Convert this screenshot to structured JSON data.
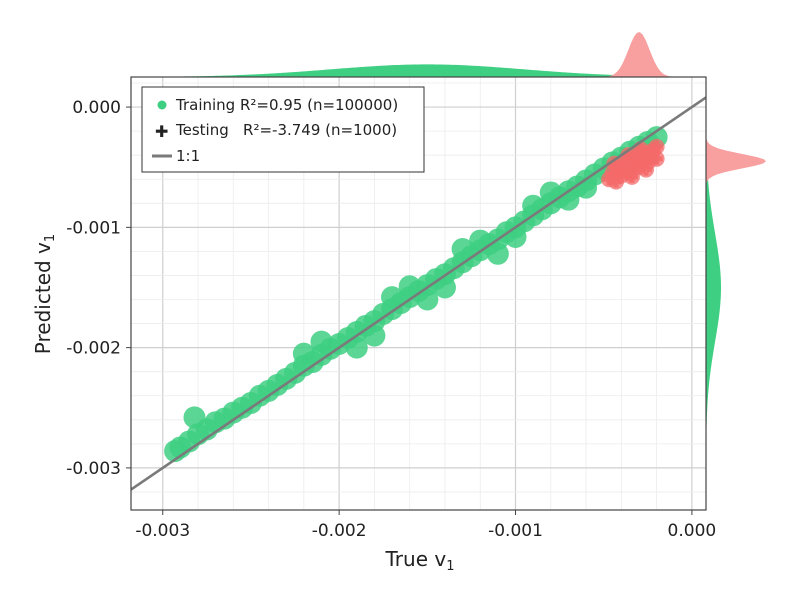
{
  "chart_data": {
    "type": "scatter",
    "title": "",
    "xlabel": "True v",
    "xlabel_sub": "1",
    "ylabel": "Predicted v",
    "ylabel_sub": "1",
    "xlim": [
      -0.00318,
      8e-05
    ],
    "ylim": [
      -0.00335,
      0.00025
    ],
    "x_ticks": [
      -0.003,
      -0.002,
      -0.001,
      0.0
    ],
    "x_tick_labels": [
      "-0.003",
      "-0.002",
      "-0.001",
      "0.000"
    ],
    "y_ticks": [
      0.0,
      -0.001,
      -0.002,
      -0.003
    ],
    "y_tick_labels": [
      "0.000",
      "-0.001",
      "-0.002",
      "-0.003"
    ],
    "grid": true,
    "legend_position": "top-left",
    "legend": [
      {
        "marker": "circle",
        "label": "Training R²=0.95 (n=100000)"
      },
      {
        "marker": "plus",
        "label": "Testing   R²=-3.749 (n=1000)"
      },
      {
        "marker": "line",
        "label": "1:1"
      }
    ],
    "series": [
      {
        "name": "Training R²=0.95 (n=100000)",
        "color": "#3ecf82",
        "marker": "circle",
        "points": [
          [
            -0.00293,
            -0.00286
          ],
          [
            -0.0029,
            -0.00283
          ],
          [
            -0.00285,
            -0.00278
          ],
          [
            -0.00282,
            -0.00258
          ],
          [
            -0.0028,
            -0.00272
          ],
          [
            -0.00275,
            -0.00268
          ],
          [
            -0.0027,
            -0.00262
          ],
          [
            -0.00265,
            -0.00259
          ],
          [
            -0.0026,
            -0.00254
          ],
          [
            -0.00255,
            -0.0025
          ],
          [
            -0.0025,
            -0.00246
          ],
          [
            -0.00245,
            -0.0024
          ],
          [
            -0.0024,
            -0.00236
          ],
          [
            -0.00235,
            -0.00231
          ],
          [
            -0.0023,
            -0.00226
          ],
          [
            -0.00225,
            -0.00221
          ],
          [
            -0.0022,
            -0.00215
          ],
          [
            -0.00215,
            -0.00212
          ],
          [
            -0.0021,
            -0.00206
          ],
          [
            -0.00205,
            -0.00201
          ],
          [
            -0.002,
            -0.00197
          ],
          [
            -0.00195,
            -0.00192
          ],
          [
            -0.0019,
            -0.00187
          ],
          [
            -0.00185,
            -0.00182
          ],
          [
            -0.0018,
            -0.00178
          ],
          [
            -0.00175,
            -0.00172
          ],
          [
            -0.0017,
            -0.00168
          ],
          [
            -0.00165,
            -0.00163
          ],
          [
            -0.0016,
            -0.00158
          ],
          [
            -0.00155,
            -0.00153
          ],
          [
            -0.0015,
            -0.00148
          ],
          [
            -0.00145,
            -0.00143
          ],
          [
            -0.0014,
            -0.00139
          ],
          [
            -0.00135,
            -0.00134
          ],
          [
            -0.0013,
            -0.00129
          ],
          [
            -0.00125,
            -0.00124
          ],
          [
            -0.0012,
            -0.00119
          ],
          [
            -0.00115,
            -0.00114
          ],
          [
            -0.0011,
            -0.0011
          ],
          [
            -0.00105,
            -0.00104
          ],
          [
            -0.001,
            -0.001
          ],
          [
            -0.00095,
            -0.00095
          ],
          [
            -0.0009,
            -0.0009
          ],
          [
            -0.00085,
            -0.00085
          ],
          [
            -0.0008,
            -0.0008
          ],
          [
            -0.00075,
            -0.00075
          ],
          [
            -0.0007,
            -0.0007
          ],
          [
            -0.00065,
            -0.00066
          ],
          [
            -0.0006,
            -0.00061
          ],
          [
            -0.00055,
            -0.00056
          ],
          [
            -0.0005,
            -0.00051
          ],
          [
            -0.00045,
            -0.00046
          ],
          [
            -0.0004,
            -0.00042
          ],
          [
            -0.00035,
            -0.00037
          ],
          [
            -0.0003,
            -0.00033
          ],
          [
            -0.00025,
            -0.00029
          ],
          [
            -0.0002,
            -0.00025
          ],
          [
            -0.0022,
            -0.00205
          ],
          [
            -0.0019,
            -0.002
          ],
          [
            -0.0017,
            -0.00158
          ],
          [
            -0.0015,
            -0.0016
          ],
          [
            -0.0013,
            -0.00118
          ],
          [
            -0.0011,
            -0.00122
          ],
          [
            -0.0009,
            -0.00082
          ],
          [
            -0.0007,
            -0.00077
          ],
          [
            -0.0021,
            -0.00195
          ],
          [
            -0.0018,
            -0.0019
          ],
          [
            -0.0016,
            -0.00149
          ],
          [
            -0.0014,
            -0.0015
          ],
          [
            -0.0012,
            -0.00111
          ],
          [
            -0.001,
            -0.00108
          ],
          [
            -0.0008,
            -0.00071
          ],
          [
            -0.0006,
            -0.00067
          ]
        ]
      },
      {
        "name": "Testing   R²=-3.749 (n=1000)",
        "color": "#f46a6a",
        "marker": "plus",
        "points": [
          [
            -0.00047,
            -0.0006
          ],
          [
            -0.00045,
            -0.00055
          ],
          [
            -0.00043,
            -0.00062
          ],
          [
            -0.00042,
            -0.0005
          ],
          [
            -0.0004,
            -0.00057
          ],
          [
            -0.00038,
            -0.00052
          ],
          [
            -0.00037,
            -0.00045
          ],
          [
            -0.00035,
            -0.00055
          ],
          [
            -0.00033,
            -0.00048
          ],
          [
            -0.00032,
            -0.00042
          ],
          [
            -0.0003,
            -0.0005
          ],
          [
            -0.00028,
            -0.00044
          ],
          [
            -0.00027,
            -0.00038
          ],
          [
            -0.00025,
            -0.00046
          ],
          [
            -0.00023,
            -0.00041
          ],
          [
            -0.00022,
            -0.00036
          ],
          [
            -0.0002,
            -0.00043
          ],
          [
            -0.0002,
            -0.00033
          ],
          [
            -0.00044,
            -0.00047
          ],
          [
            -0.00036,
            -0.0004
          ],
          [
            -0.00029,
            -0.00035
          ],
          [
            -0.00041,
            -0.00053
          ],
          [
            -0.00034,
            -0.00058
          ],
          [
            -0.00026,
            -0.00052
          ]
        ]
      },
      {
        "name": "1:1",
        "color": "#7a7a7a",
        "marker": "line",
        "points": [
          [
            -0.00318,
            -0.00318
          ],
          [
            8e-05,
            8e-05
          ]
        ]
      }
    ]
  },
  "marginals": {
    "top_training_color": "#3ecf82",
    "top_testing_color": "#f8a0a0",
    "right_training_color": "#3ecf82",
    "right_testing_color": "#f8a0a0"
  }
}
